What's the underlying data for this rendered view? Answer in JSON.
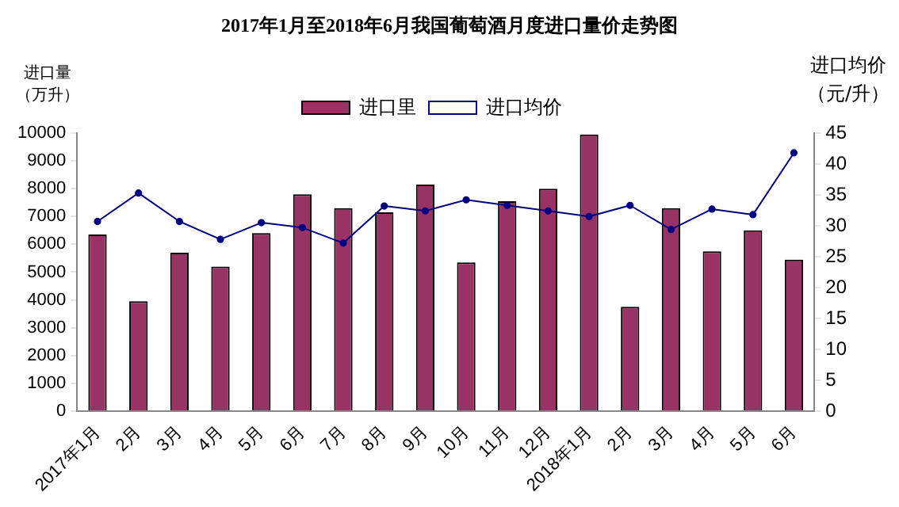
{
  "chart_data": {
    "type": "bar",
    "title": "2017年1月至2018年6月我国葡萄酒月度进口量价走势图",
    "ylabel": "进口量（万升）",
    "y2label": "进口均价（元/升）",
    "categories": [
      "2017年1月",
      "2月",
      "3月",
      "4月",
      "5月",
      "6月",
      "7月",
      "8月",
      "9月",
      "10月",
      "11月",
      "12月",
      "2018年1月",
      "2月",
      "3月",
      "4月",
      "5月",
      "6月"
    ],
    "series": [
      {
        "name": "进口里",
        "color": "#993366",
        "values": [
          6350,
          3950,
          5700,
          5200,
          6400,
          7800,
          7300,
          7150,
          8150,
          5350,
          7550,
          8000,
          9950,
          3750,
          7300,
          5750,
          6500,
          5450
        ]
      },
      {
        "name": "进口均价",
        "type": "line",
        "axis": "y2",
        "color": "#000080",
        "marker": "circle",
        "values": [
          30.7,
          35.3,
          30.7,
          27.8,
          30.5,
          29.7,
          27.2,
          33.2,
          32.4,
          34.2,
          33.3,
          32.4,
          31.5,
          33.3,
          29.4,
          32.7,
          31.8,
          41.8
        ]
      }
    ],
    "ylim": [
      0,
      10000
    ],
    "yticks": [
      0,
      1000,
      2000,
      3000,
      4000,
      5000,
      6000,
      7000,
      8000,
      9000,
      10000
    ],
    "y2lim": [
      0,
      45
    ],
    "y2ticks": [
      0,
      5,
      10,
      15,
      20,
      25,
      30,
      35,
      40,
      45
    ],
    "legend": "top",
    "grid": false
  }
}
